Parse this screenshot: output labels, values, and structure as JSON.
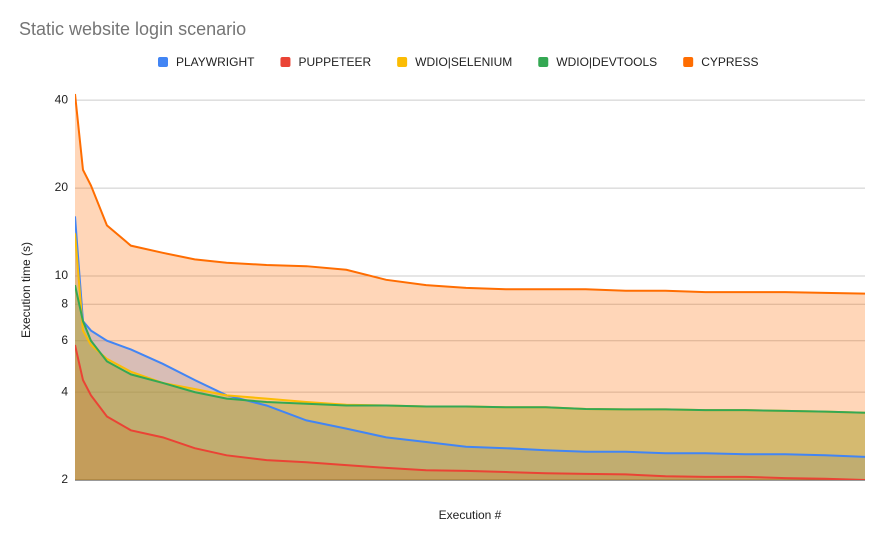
{
  "chart_data": {
    "type": "area",
    "title": "Static website login scenario",
    "x_label": "Execution #",
    "y_label": "Execution time (s)",
    "log_scale_y": true,
    "grid": true,
    "x": [
      1,
      2,
      3,
      5,
      8,
      12,
      16,
      20,
      25,
      30,
      35,
      40,
      45,
      50,
      55,
      60,
      65,
      70,
      75,
      80,
      85,
      90,
      95,
      100
    ],
    "xlim": [
      1,
      100
    ],
    "ylim": [
      2,
      42
    ],
    "yticks": [
      2,
      4,
      6,
      8,
      10,
      20,
      40
    ],
    "series": [
      {
        "name": "PLAYWRIGHT",
        "color": "#4285f4",
        "values": [
          16,
          7.0,
          6.5,
          6.0,
          5.6,
          5.0,
          4.4,
          3.9,
          3.6,
          3.2,
          3.0,
          2.8,
          2.7,
          2.6,
          2.57,
          2.53,
          2.5,
          2.5,
          2.47,
          2.47,
          2.45,
          2.45,
          2.43,
          2.4
        ]
      },
      {
        "name": "PUPPETEER",
        "color": "#ea4335",
        "values": [
          5.8,
          4.4,
          3.9,
          3.3,
          2.96,
          2.8,
          2.57,
          2.43,
          2.34,
          2.3,
          2.25,
          2.2,
          2.16,
          2.15,
          2.13,
          2.11,
          2.1,
          2.09,
          2.06,
          2.05,
          2.05,
          2.03,
          2.02,
          2.0
        ]
      },
      {
        "name": "WDIO|SELENIUM",
        "color": "#fbbc04",
        "values": [
          14,
          6.5,
          5.8,
          5.2,
          4.7,
          4.3,
          4.1,
          3.9,
          3.8,
          3.7,
          3.62,
          3.6,
          3.57,
          3.57,
          3.55,
          3.55,
          3.5,
          3.49,
          3.49,
          3.47,
          3.47,
          3.45,
          3.43,
          3.4
        ]
      },
      {
        "name": "WDIO|DEVTOOLS",
        "color": "#34a853",
        "values": [
          9.3,
          7.0,
          6.0,
          5.1,
          4.6,
          4.3,
          4.0,
          3.8,
          3.7,
          3.65,
          3.6,
          3.6,
          3.57,
          3.57,
          3.55,
          3.55,
          3.5,
          3.49,
          3.49,
          3.47,
          3.47,
          3.45,
          3.43,
          3.4
        ]
      },
      {
        "name": "CYPRESS",
        "color": "#ff6d01",
        "values": [
          42,
          23.1,
          20.4,
          14.9,
          12.7,
          12,
          11.4,
          11.1,
          10.9,
          10.8,
          10.5,
          9.7,
          9.3,
          9.1,
          9.0,
          9.0,
          9.0,
          8.9,
          8.9,
          8.8,
          8.8,
          8.8,
          8.75,
          8.7
        ]
      }
    ]
  }
}
